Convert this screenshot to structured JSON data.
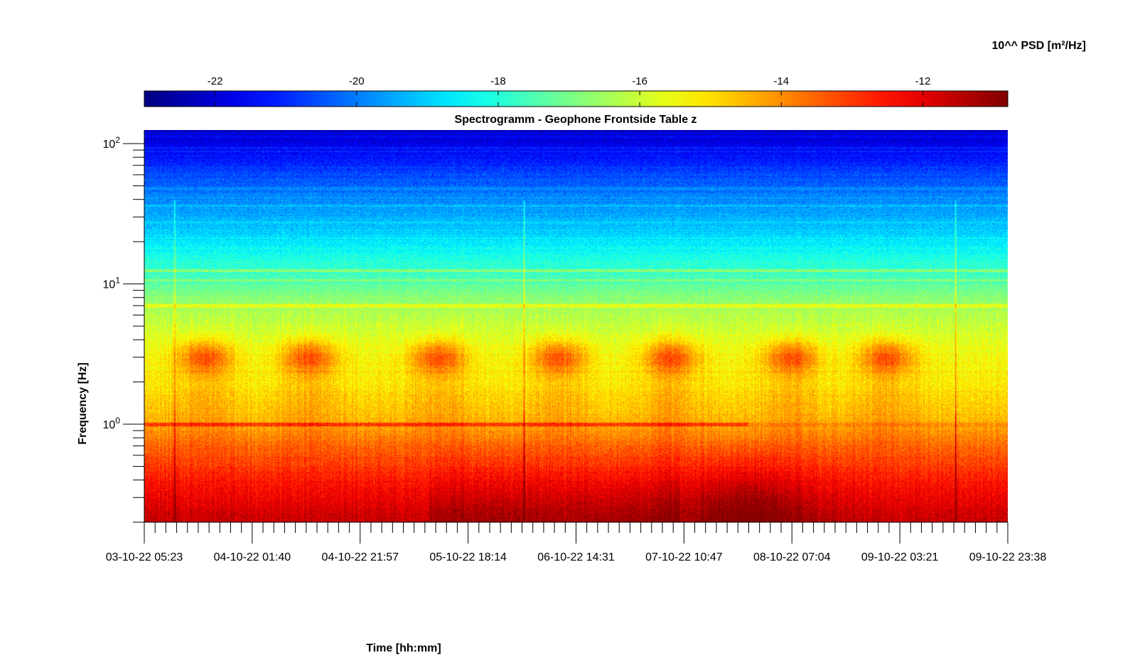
{
  "chart_data": {
    "type": "heatmap",
    "title": "Spectrogramm - Geophone Frontside Table z",
    "xlabel": "Time [hh:mm]",
    "ylabel": "Frequency [Hz]",
    "colorbar": {
      "label": "10^^ PSD [m²/Hz]",
      "range": [
        -23.0,
        -10.8
      ],
      "ticks": [
        -22,
        -20,
        -18,
        -16,
        -14,
        -12
      ],
      "tick_labels": [
        "-22",
        "-20",
        "-18",
        "-16",
        "-14",
        "-12"
      ],
      "colormap": "jet",
      "placement": "top"
    },
    "x_tick_labels": [
      "03-10-22 05:23",
      "04-10-22 01:40",
      "04-10-22 21:57",
      "05-10-22 18:14",
      "06-10-22 14:31",
      "07-10-22 10:47",
      "08-10-22 07:04",
      "09-10-22 03:21",
      "09-10-22 23:38"
    ],
    "x_range": [
      "03-10-22 05:23",
      "09-10-22 23:38"
    ],
    "y_scale": "log",
    "y_range": [
      0.2,
      125
    ],
    "y_tick_values": [
      1,
      10,
      100
    ],
    "y_tick_labels": [
      {
        "base": "10",
        "exp": "0"
      },
      {
        "base": "10",
        "exp": "1"
      },
      {
        "base": "10",
        "exp": "2"
      }
    ],
    "grid": false,
    "features": {
      "day_cycles_at_3Hz": 7,
      "spike_lines_at_fraction_of_time": [
        0.035,
        0.44,
        0.94
      ],
      "bands_hz": [
        1.0,
        7.0,
        12.5
      ]
    }
  }
}
